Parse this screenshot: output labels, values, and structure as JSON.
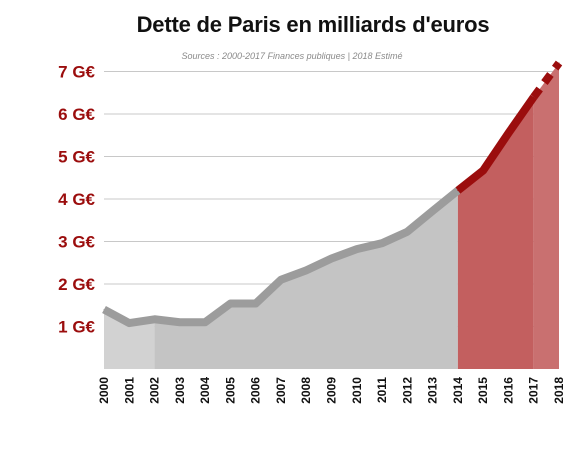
{
  "title": "Dette de Paris en milliards d'euros",
  "subtitle": "Sources : 2000-2017 Finances publiques | 2018 Estimé",
  "colors": {
    "historical_line": "#9c9c9c",
    "historical_fill": "#c4c4c4",
    "historical_fill_light": "#d2d2d2",
    "recent_line": "#9b0d0d",
    "recent_fill": "#c35f5f",
    "estimate_fill": "#c97070",
    "axis_label": "#9b0d0d",
    "grid": "#c8c8c8"
  },
  "chart_data": {
    "type": "area",
    "title": "Dette de Paris en milliards d'euros",
    "subtitle": "Sources : 2000-2017 Finances publiques | 2018 Estimé",
    "x": [
      2000,
      2001,
      2002,
      2003,
      2004,
      2005,
      2006,
      2007,
      2008,
      2009,
      2010,
      2011,
      2012,
      2013,
      2014,
      2015,
      2016,
      2017,
      2018
    ],
    "y": [
      1.4,
      1.08,
      1.17,
      1.1,
      1.1,
      1.54,
      1.54,
      2.1,
      2.32,
      2.6,
      2.82,
      2.96,
      3.23,
      3.72,
      4.2,
      4.67,
      5.55,
      6.4,
      7.2
    ],
    "x_tick_labels": [
      "2000",
      "2001",
      "2002",
      "2003",
      "2004",
      "2005",
      "2006",
      "2007",
      "2008",
      "2009",
      "2010",
      "2011",
      "2012",
      "2013",
      "2014",
      "2015",
      "2016",
      "2017",
      "2018"
    ],
    "y_ticks": [
      1,
      2,
      3,
      4,
      5,
      6,
      7
    ],
    "y_tick_labels": [
      "1 G€",
      "2 G€",
      "3 G€",
      "4 G€",
      "5 G€",
      "6 G€",
      "7 G€"
    ],
    "ylim": [
      0,
      7.3
    ],
    "xlabel": "",
    "ylabel": "",
    "grid": true,
    "segments": [
      {
        "from": 2000,
        "to": 2014,
        "style": "grey"
      },
      {
        "from": 2014,
        "to": 2017,
        "style": "red"
      },
      {
        "from": 2017,
        "to": 2018,
        "style": "estimate-dashed"
      }
    ]
  }
}
